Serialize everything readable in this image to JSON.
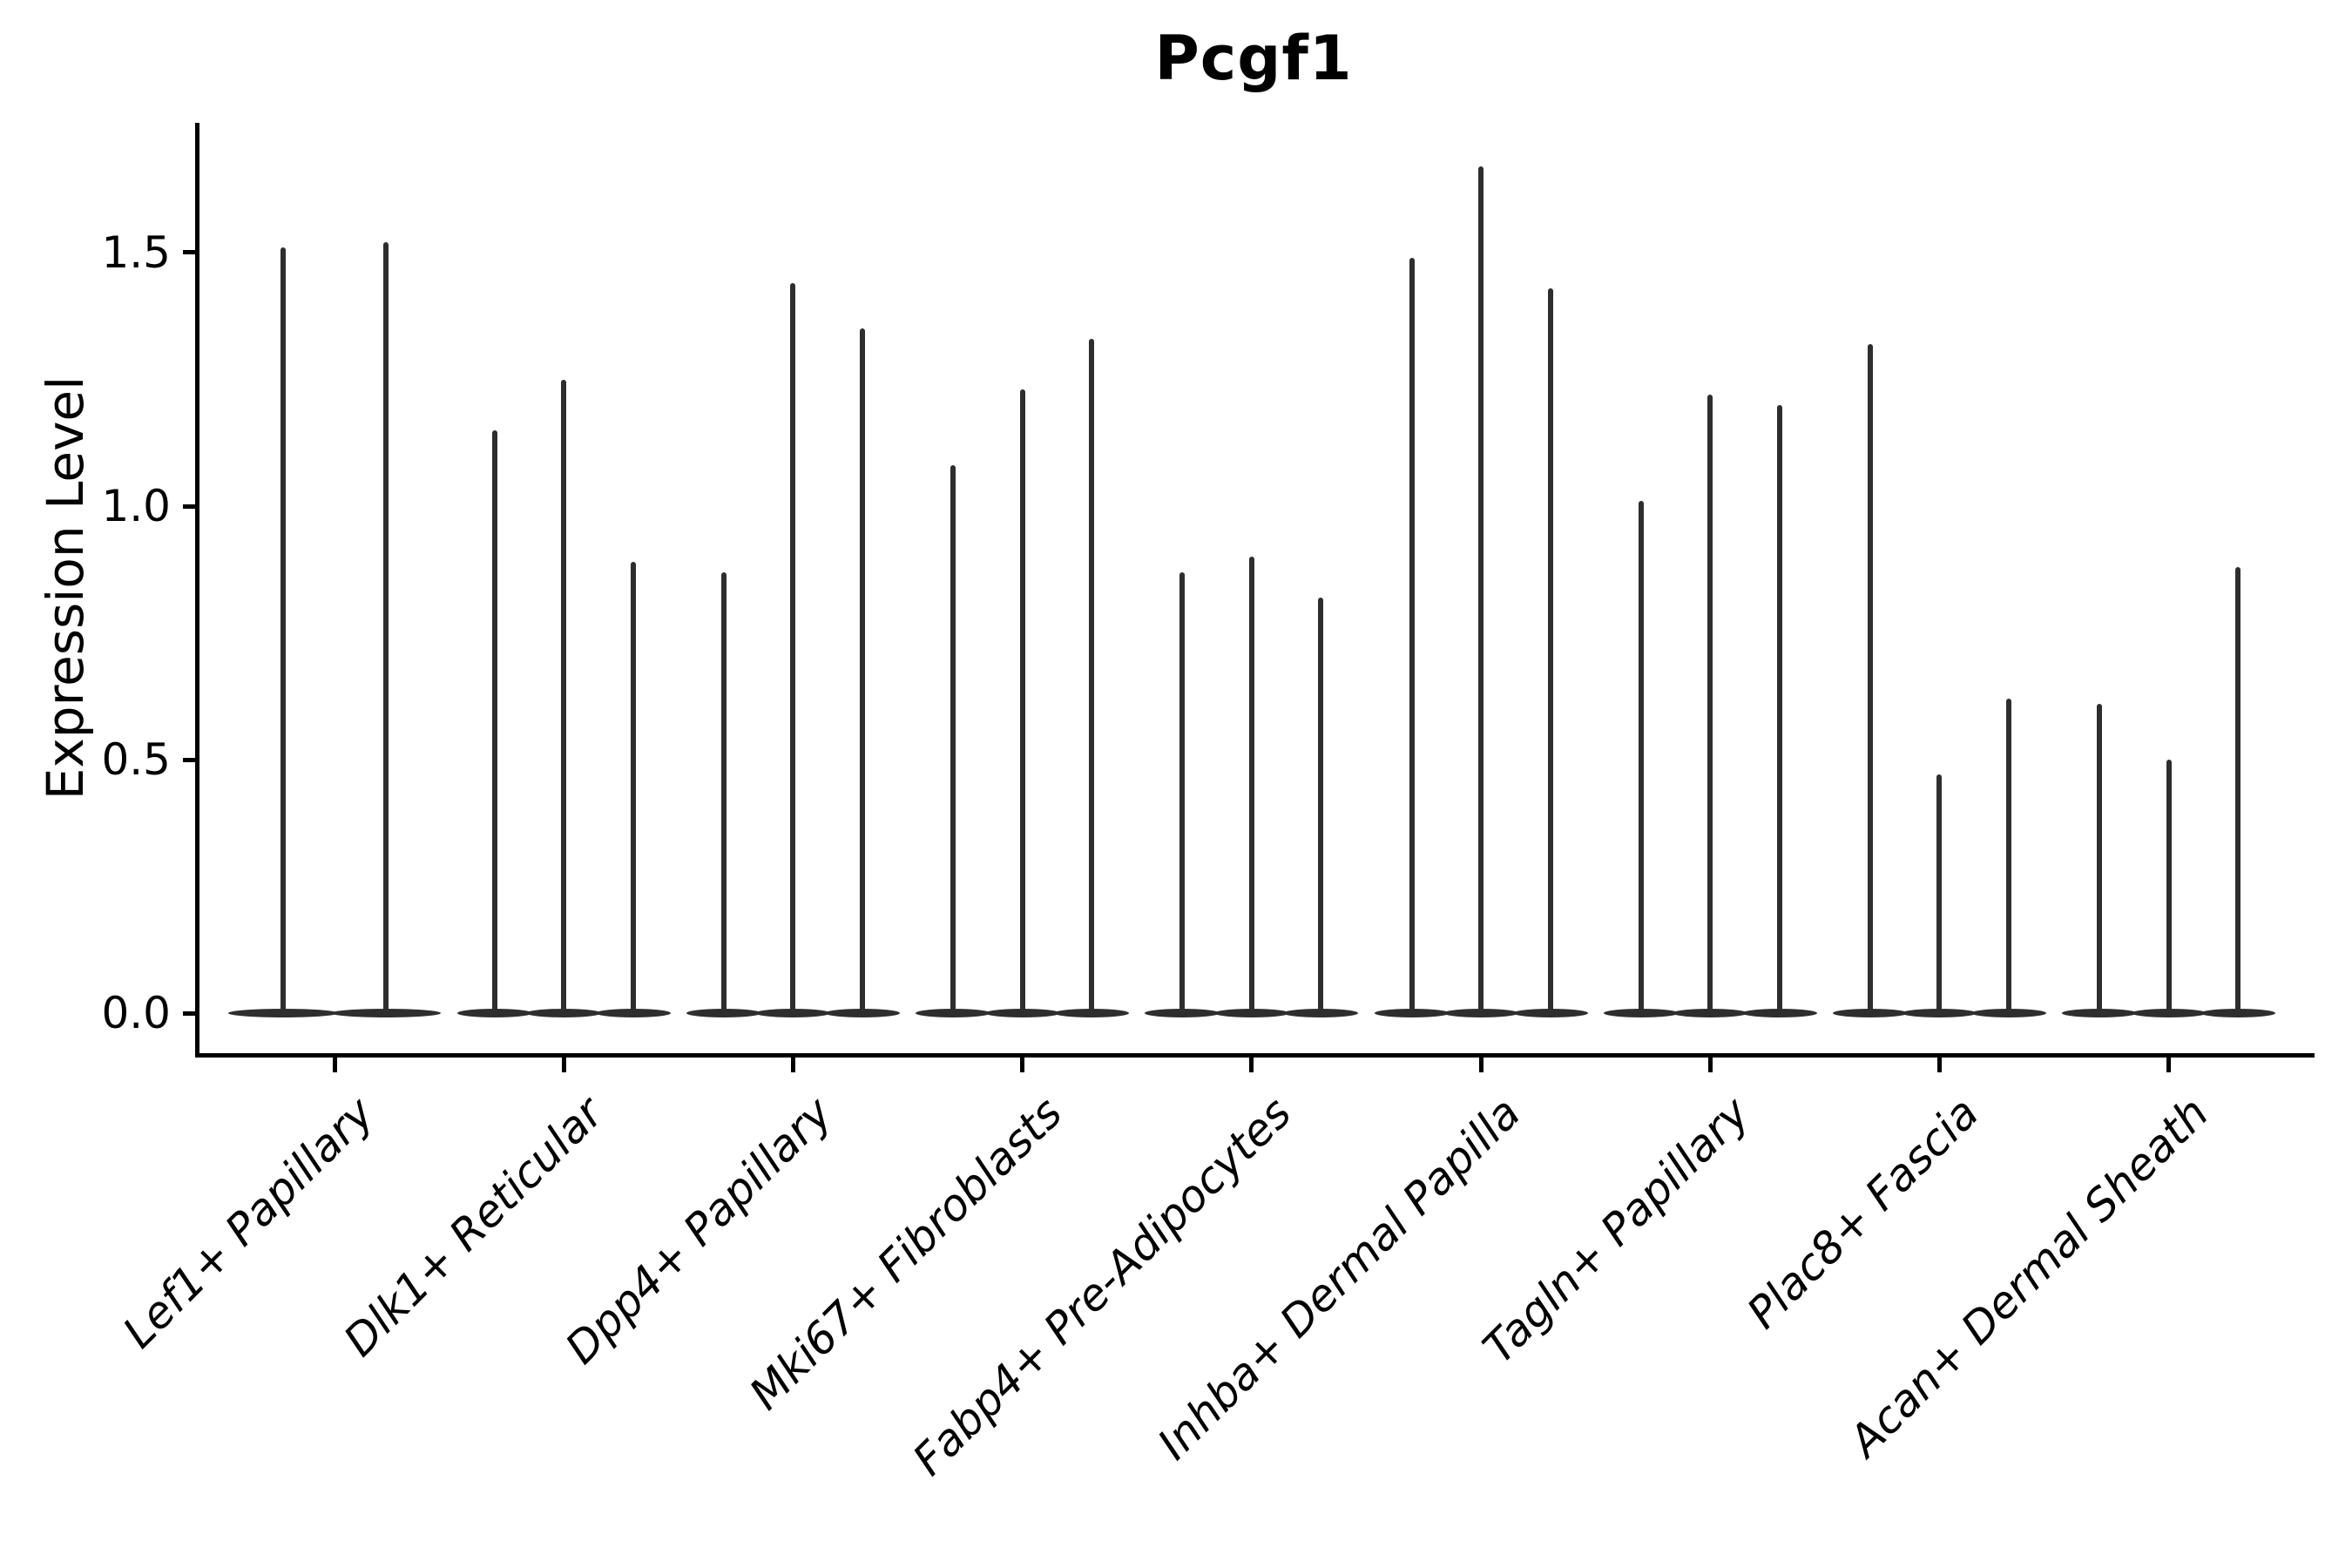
{
  "title": "Pcgf1",
  "chart_data": {
    "type": "violin",
    "title": "Pcgf1",
    "subtitle": "",
    "xlabel": "",
    "ylabel": "Expression Level",
    "grid": false,
    "legend_position": "none",
    "ylim": [
      -0.079,
      1.756
    ],
    "ytick_values": [
      0.0,
      0.5,
      1.0,
      1.5
    ],
    "ytick_labels": [
      "0.0",
      "0.5",
      "1.0",
      "1.5"
    ],
    "baseline_value": 0.0,
    "categories": [
      "Lef1+ Papillary",
      "Dlk1+ Reticular",
      "Dpp4+ Papillary",
      "Mki67+ Fibroblasts",
      "Fabp4+ Pre-Adipocytes",
      "Inhba+ Dermal Papilla",
      "Tagln+ Papillary",
      "Plac8+ Fascia",
      "Acan+ Dermal Sheath"
    ],
    "groups": [
      {
        "label": "Lef1+ Papillary",
        "violin_maxima": [
          1.51,
          1.52
        ]
      },
      {
        "label": "Dlk1+ Reticular",
        "violin_maxima": [
          1.15,
          1.25,
          0.89
        ]
      },
      {
        "label": "Dpp4+ Papillary",
        "violin_maxima": [
          0.87,
          1.44,
          1.35
        ]
      },
      {
        "label": "Mki67+ Fibroblasts",
        "violin_maxima": [
          1.08,
          1.23,
          1.33
        ]
      },
      {
        "label": "Fabp4+ Pre-Adipocytes",
        "violin_maxima": [
          0.87,
          0.9,
          0.82
        ]
      },
      {
        "label": "Inhba+ Dermal Papilla",
        "violin_maxima": [
          1.49,
          1.67,
          1.43
        ]
      },
      {
        "label": "Tagln+ Papillary",
        "violin_maxima": [
          1.01,
          1.22,
          1.2
        ]
      },
      {
        "label": "Plac8+ Fascia",
        "violin_maxima": [
          1.32,
          0.47,
          0.62
        ]
      },
      {
        "label": "Acan+ Dermal Sheath",
        "violin_maxima": [
          0.61,
          0.5,
          0.88
        ]
      }
    ],
    "colors": {
      "violin": "#2e2e2e",
      "axis": "#000000",
      "text": "#000000",
      "background": "#ffffff"
    }
  }
}
